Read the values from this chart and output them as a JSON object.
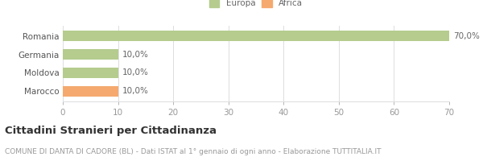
{
  "categories": [
    "Romania",
    "Germania",
    "Moldova",
    "Marocco"
  ],
  "values": [
    70.0,
    10.0,
    10.0,
    10.0
  ],
  "colors": [
    "#b5cc8e",
    "#b5cc8e",
    "#b5cc8e",
    "#f5a96e"
  ],
  "xlim": [
    0,
    70
  ],
  "xticks": [
    0,
    10,
    20,
    30,
    40,
    50,
    60,
    70
  ],
  "legend_labels": [
    "Europa",
    "Africa"
  ],
  "legend_colors": [
    "#b5cc8e",
    "#f5a96e"
  ],
  "title": "Cittadini Stranieri per Cittadinanza",
  "subtitle": "COMUNE DI DANTA DI CADORE (BL) - Dati ISTAT al 1° gennaio di ogni anno - Elaborazione TUTTITALIA.IT",
  "bar_height": 0.55,
  "bg_color": "#ffffff",
  "grid_color": "#dddddd",
  "label_fontsize": 7.5,
  "title_fontsize": 9.5,
  "subtitle_fontsize": 6.5
}
